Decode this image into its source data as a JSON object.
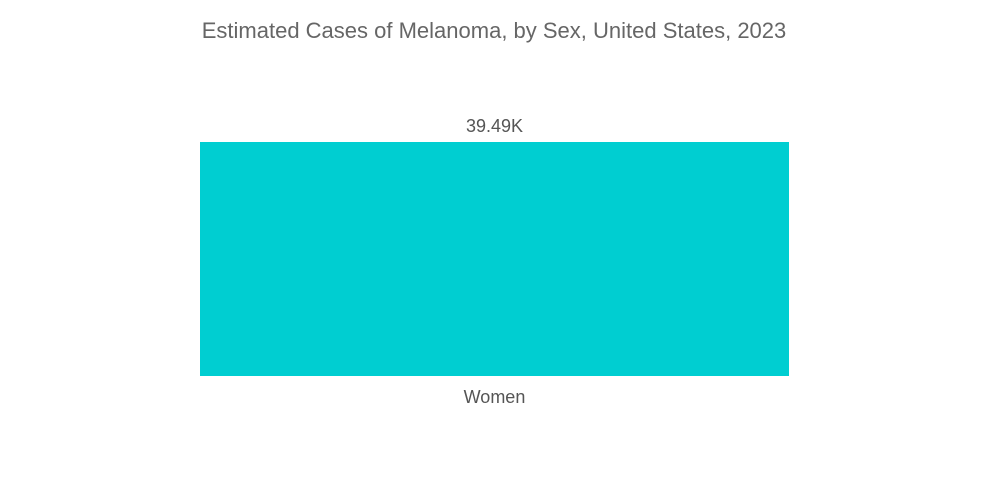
{
  "chart_data": {
    "type": "bar",
    "title": "Estimated Cases of Melanoma, by Sex, United States, 2023",
    "categories": [
      "Women"
    ],
    "values": [
      39490
    ],
    "data_labels": [
      "39.49K"
    ],
    "xlabel": "",
    "ylabel": "",
    "ylim": [
      0,
      39490
    ],
    "grid": false,
    "legend": "none",
    "colors": {
      "bar": "#00CED1",
      "title_text": "#666666",
      "label_text": "#555555"
    }
  }
}
